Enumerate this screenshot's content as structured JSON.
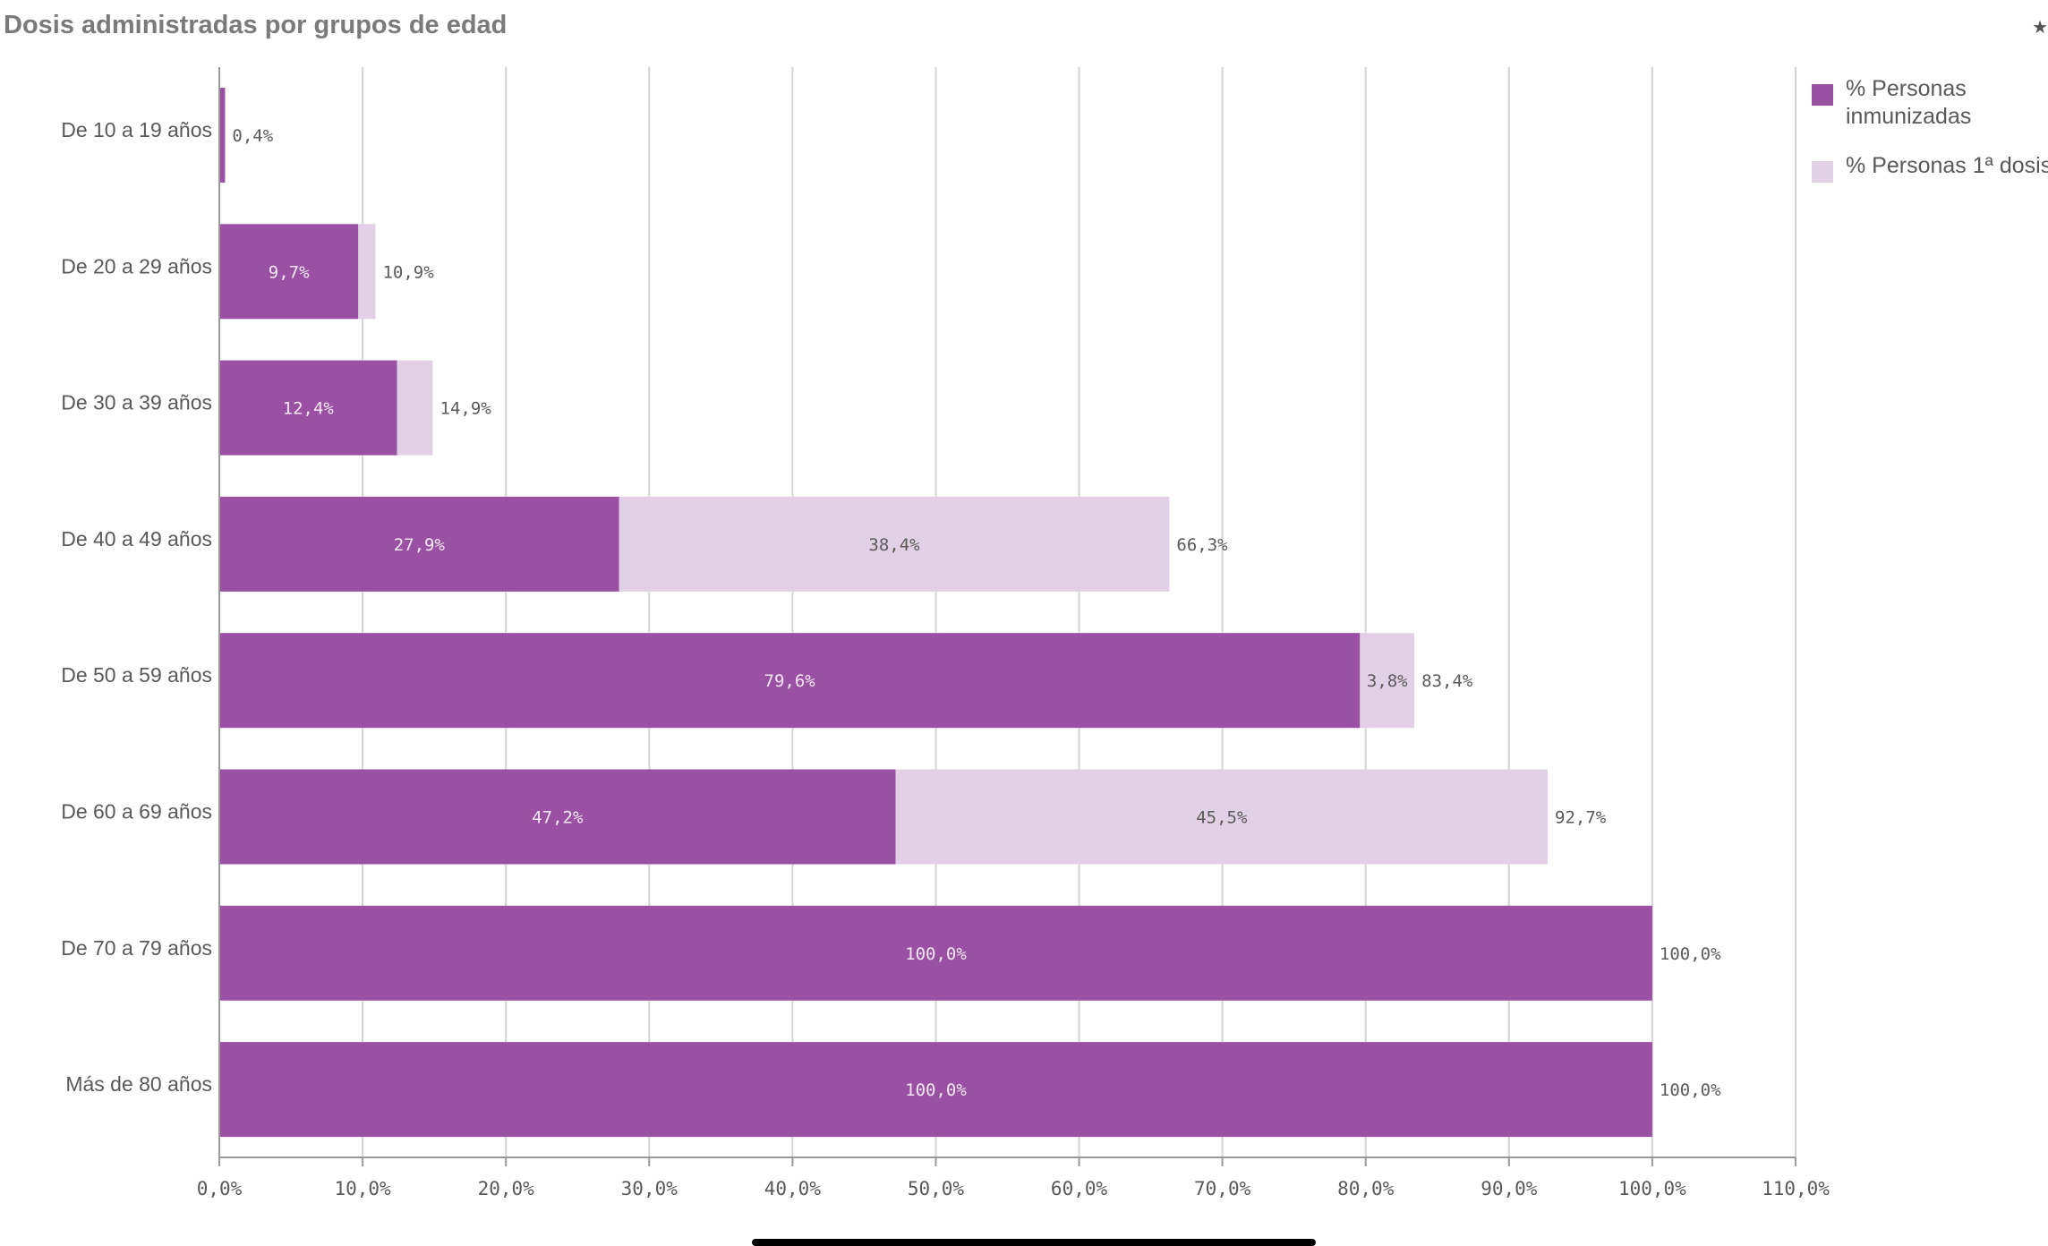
{
  "title": "Dosis administradas por grupos de edad",
  "chart_data": {
    "type": "bar",
    "orientation": "horizontal",
    "stacked": true,
    "title": "Dosis administradas por grupos de edad",
    "categories": [
      "De 10 a 19 años",
      "De 20 a 29 años",
      "De 30 a 39 años",
      "De 40 a 49 años",
      "De 50 a 59 años",
      "De 60 a 69 años",
      "De 70 a 79 años",
      "Más de 80 años"
    ],
    "series": [
      {
        "name": "% Personas inmunizadas",
        "legend_lines": [
          "% Personas",
          "inmunizadas"
        ],
        "color": "#9b51a3",
        "label_color": "#f4e8f6",
        "values": [
          0.4,
          9.7,
          12.4,
          27.9,
          79.6,
          47.2,
          100.0,
          100.0
        ],
        "labels": [
          "",
          "9,7%",
          "12,4%",
          "27,9%",
          "79,6%",
          "47,2%",
          "100,0%",
          "100,0%"
        ]
      },
      {
        "name": "% Personas 1ª dosis",
        "legend_lines": [
          "% Personas 1ª dosis"
        ],
        "color": "#e2d1e6",
        "label_color": "#5a5a5a",
        "values": [
          0.0,
          1.2,
          2.5,
          38.4,
          3.8,
          45.5,
          0.0,
          0.0
        ],
        "labels": [
          "",
          "",
          "",
          "38,4%",
          "3,8%",
          "45,5%",
          "",
          ""
        ]
      }
    ],
    "totals": [
      0.4,
      10.9,
      14.9,
      66.3,
      83.4,
      92.7,
      100.0,
      100.0
    ],
    "total_labels": [
      "0,4%",
      "10,9%",
      "14,9%",
      "66,3%",
      "83,4%",
      "92,7%",
      "100,0%",
      "100,0%"
    ],
    "xlim": [
      0,
      110
    ],
    "xticks": [
      0,
      10,
      20,
      30,
      40,
      50,
      60,
      70,
      80,
      90,
      100,
      110
    ],
    "xtick_labels": [
      "0,0%",
      "10,0%",
      "20,0%",
      "30,0%",
      "40,0%",
      "50,0%",
      "60,0%",
      "70,0%",
      "80,0%",
      "90,0%",
      "100,0%",
      "110,0%"
    ],
    "xlabel": "",
    "ylabel": "",
    "grid": true,
    "legend_position": "top-right"
  }
}
